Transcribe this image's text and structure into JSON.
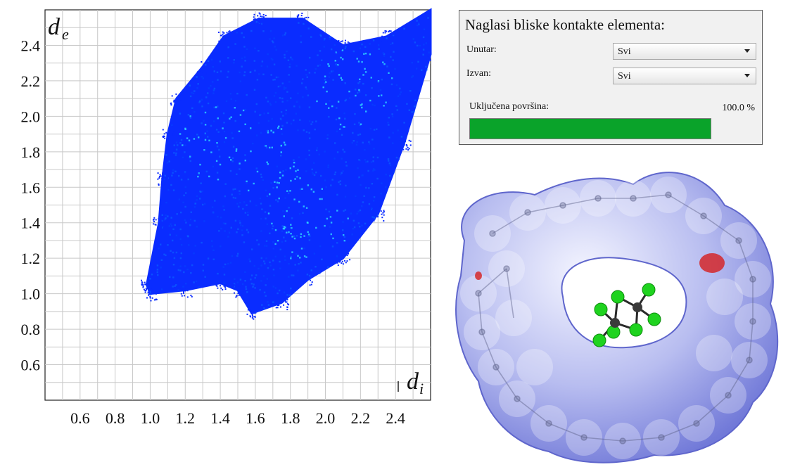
{
  "chart_data": {
    "type": "heatmap",
    "title": "",
    "xlabel": {
      "base": "d",
      "sub": "i"
    },
    "ylabel": {
      "base": "d",
      "sub": "e"
    },
    "xlim": [
      0.4,
      2.6
    ],
    "ylim": [
      0.4,
      2.6
    ],
    "x_ticks": [
      "0.6",
      "0.8",
      "1.0",
      "1.2",
      "1.4",
      "1.6",
      "1.8",
      "2.0",
      "2.2",
      "2.4"
    ],
    "y_ticks": [
      "0.6",
      "0.8",
      "1.0",
      "1.2",
      "1.4",
      "1.6",
      "1.8",
      "2.0",
      "2.2",
      "2.4"
    ],
    "grid": true,
    "colors": {
      "low": "#0a2cff",
      "mid": "#0a7bff",
      "high": "#2fd8ff"
    },
    "region_outline": [
      [
        1.0,
        1.0
      ],
      [
        1.2,
        1.02
      ],
      [
        1.4,
        1.06
      ],
      [
        1.5,
        1.02
      ],
      [
        1.58,
        0.89
      ],
      [
        1.75,
        0.95
      ],
      [
        1.9,
        1.08
      ],
      [
        2.1,
        1.2
      ],
      [
        2.3,
        1.45
      ],
      [
        2.45,
        1.85
      ],
      [
        2.6,
        2.35
      ],
      [
        2.6,
        2.6
      ],
      [
        2.35,
        2.45
      ],
      [
        2.1,
        2.4
      ],
      [
        1.87,
        2.55
      ],
      [
        1.62,
        2.55
      ],
      [
        1.42,
        2.45
      ],
      [
        1.3,
        2.28
      ],
      [
        1.15,
        2.1
      ],
      [
        1.1,
        1.9
      ],
      [
        1.07,
        1.65
      ],
      [
        1.05,
        1.4
      ],
      [
        0.98,
        1.05
      ]
    ],
    "density_peaks": [
      {
        "x": 1.4,
        "y": 1.85
      },
      {
        "x": 1.65,
        "y": 1.75
      },
      {
        "x": 1.9,
        "y": 1.4
      },
      {
        "x": 2.15,
        "y": 2.15
      }
    ]
  },
  "panel": {
    "heading": "Naglasi bliske kontakte elementa:",
    "inside": {
      "label": "Unutar:",
      "value": "Svi"
    },
    "outside": {
      "label": "Izvan:",
      "value": "Svi"
    },
    "coverage": {
      "label": "Uključena površina:",
      "value_text": "100.0 %",
      "fraction": 1.0
    },
    "bar_color": "#0aa32a"
  },
  "surface": {
    "surface_color": "#a7aee6",
    "contact_color": "#d61e1e",
    "ligand_atom_color": "#1fd31f",
    "ligand_center_color": "#3a3a3a"
  }
}
